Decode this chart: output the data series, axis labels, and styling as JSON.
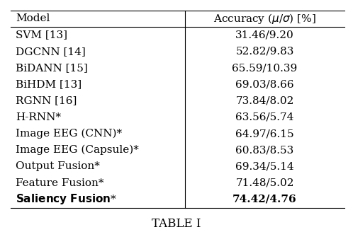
{
  "col_header_left": "Model",
  "col_header_right": "Accuracy (μ/σ) [%]",
  "rows": [
    {
      "model": "SVM [13]",
      "accuracy": "31.46/9.20",
      "bold": false
    },
    {
      "model": "DGCNN [14]",
      "accuracy": "52.82/9.83",
      "bold": false
    },
    {
      "model": "BiDANN [15]",
      "accuracy": "65.59/10.39",
      "bold": false
    },
    {
      "model": "BiHDM [13]",
      "accuracy": "69.03/8.66",
      "bold": false
    },
    {
      "model": "RGNN [16]",
      "accuracy": "73.84/8.02",
      "bold": false
    },
    {
      "model": "H-RNN*",
      "accuracy": "63.56/5.74",
      "bold": false
    },
    {
      "model": "Image EEG (CNN)*",
      "accuracy": "64.97/6.15",
      "bold": false
    },
    {
      "model": "Image EEG (Capsule)*",
      "accuracy": "60.83/8.53",
      "bold": false
    },
    {
      "model": "Output Fusion*",
      "accuracy": "69.34/5.14",
      "bold": false
    },
    {
      "model": "Feature Fusion*",
      "accuracy": "71.48/5.02",
      "bold": false
    },
    {
      "model": "Saliency Fusion*",
      "accuracy": "74.42/4.76",
      "bold": true
    }
  ],
  "caption": "TABLE I",
  "bg_color": "#ffffff",
  "text_color": "#000000",
  "line_color": "#000000",
  "font_size": 11.0,
  "caption_font_size": 12,
  "header_font_size": 11.0
}
